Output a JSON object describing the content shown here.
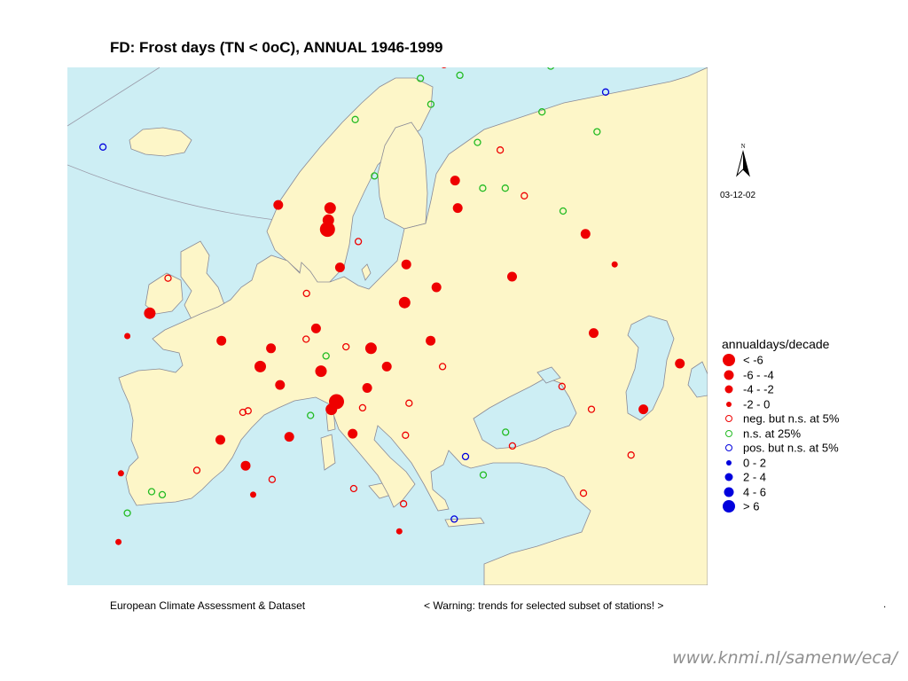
{
  "title": "FD: Frost days (TN < 0oC), ANNUAL 1946-1999",
  "date": "03-12-02",
  "north_label": "N",
  "footer_left": "European Climate Assessment & Dataset",
  "footer_right": "< Warning: trends for selected subset of stations! >",
  "footer_dot": ".",
  "source": "www.knmi.nl/samenw/eca/",
  "colors": {
    "land": "#fdf6c8",
    "sea": "#cdeef4",
    "negative": "#ee0000",
    "not_significant": "#22bb22",
    "positive": "#0000dd"
  },
  "legend": {
    "title": "annualdays/decade",
    "items": [
      {
        "label": "< -6",
        "color": "#ee0000",
        "size": 14,
        "style": "filled"
      },
      {
        "label": "-6 - -4",
        "color": "#ee0000",
        "size": 11,
        "style": "filled"
      },
      {
        "label": "-4 - -2",
        "color": "#ee0000",
        "size": 9,
        "style": "filled"
      },
      {
        "label": "-2 - 0",
        "color": "#ee0000",
        "size": 6,
        "style": "filled"
      },
      {
        "label": "neg. but n.s. at 5%",
        "color": "#ee0000",
        "size": 8,
        "style": "open"
      },
      {
        "label": "n.s. at 25%",
        "color": "#22bb22",
        "size": 8,
        "style": "open"
      },
      {
        "label": "pos. but n.s. at 5%",
        "color": "#0000dd",
        "size": 8,
        "style": "open"
      },
      {
        "label": "0 - 2",
        "color": "#0000dd",
        "size": 6,
        "style": "filled"
      },
      {
        "label": "2 - 4",
        "color": "#0000dd",
        "size": 9,
        "style": "filled"
      },
      {
        "label": "4 - 6",
        "color": "#0000dd",
        "size": 11,
        "style": "filled"
      },
      {
        "label": "> 6",
        "color": "#0000dd",
        "size": 14,
        "style": "filled"
      }
    ]
  },
  "stations": [
    {
      "lon": -21.9,
      "lat": 64.1,
      "cls": "pos_ns"
    },
    {
      "lon": -21.5,
      "lat": 63.4,
      "cls": "pos_ns"
    },
    {
      "lon": -15.0,
      "lat": 64.2,
      "cls": "pos_ns"
    },
    {
      "lon": 25.0,
      "lat": 69.6,
      "cls": "neg_ns"
    },
    {
      "lon": 22.0,
      "lat": 68.7,
      "cls": "ns25"
    },
    {
      "lon": 26.8,
      "lat": 68.9,
      "cls": "ns25"
    },
    {
      "lon": 38.0,
      "lat": 69.5,
      "cls": "ns25"
    },
    {
      "lon": 40.5,
      "lat": 70.0,
      "cls": "ns25"
    },
    {
      "lon": 44.0,
      "lat": 67.8,
      "cls": "pos_ns"
    },
    {
      "lon": 36.0,
      "lat": 66.5,
      "cls": "ns25"
    },
    {
      "lon": 42.0,
      "lat": 65.2,
      "cls": "ns25"
    },
    {
      "lon": 23.0,
      "lat": 67.0,
      "cls": "ns25"
    },
    {
      "lon": 14.0,
      "lat": 66.0,
      "cls": "ns25"
    },
    {
      "lon": 28.0,
      "lat": 64.5,
      "cls": "ns25"
    },
    {
      "lon": 30.5,
      "lat": 64.0,
      "cls": "neg_ns"
    },
    {
      "lon": 16.0,
      "lat": 62.3,
      "cls": "ns25"
    },
    {
      "lon": 25.0,
      "lat": 62.0,
      "cls": "d3"
    },
    {
      "lon": 28.0,
      "lat": 61.5,
      "cls": "ns25"
    },
    {
      "lon": 30.5,
      "lat": 61.5,
      "cls": "ns25"
    },
    {
      "lon": 32.5,
      "lat": 61.0,
      "cls": "neg_ns"
    },
    {
      "lon": 36.5,
      "lat": 60.0,
      "cls": "ns25"
    },
    {
      "lon": 25.0,
      "lat": 60.2,
      "cls": "d3"
    },
    {
      "lon": 38.5,
      "lat": 58.5,
      "cls": "d3"
    },
    {
      "lon": 11.0,
      "lat": 60.2,
      "cls": "d2"
    },
    {
      "lon": 10.8,
      "lat": 59.4,
      "cls": "d2"
    },
    {
      "lon": 10.7,
      "lat": 58.8,
      "cls": "d1"
    },
    {
      "lon": 5.3,
      "lat": 60.4,
      "cls": "d3"
    },
    {
      "lon": 14.0,
      "lat": 58.0,
      "cls": "neg_ns"
    },
    {
      "lon": 41.0,
      "lat": 56.5,
      "cls": "d4"
    },
    {
      "lon": 56.0,
      "lat": 57.0,
      "cls": "ns25"
    },
    {
      "lon": 12.0,
      "lat": 56.3,
      "cls": "d3"
    },
    {
      "lon": 19.0,
      "lat": 56.5,
      "cls": "d3"
    },
    {
      "lon": 30.0,
      "lat": 55.7,
      "cls": "d3"
    },
    {
      "lon": 22.0,
      "lat": 55.0,
      "cls": "d3"
    },
    {
      "lon": 18.6,
      "lat": 54.0,
      "cls": "d2"
    },
    {
      "lon": 8.5,
      "lat": 54.6,
      "cls": "neg_ns"
    },
    {
      "lon": -6.0,
      "lat": 55.6,
      "cls": "neg_ns"
    },
    {
      "lon": 37.5,
      "lat": 52.0,
      "cls": "d3"
    },
    {
      "lon": -7.5,
      "lat": 53.3,
      "cls": "d2"
    },
    {
      "lon": -9.5,
      "lat": 51.8,
      "cls": "d4"
    },
    {
      "lon": 9.5,
      "lat": 52.3,
      "cls": "d3"
    },
    {
      "lon": 8.5,
      "lat": 51.6,
      "cls": "neg_ns"
    },
    {
      "lon": 0.0,
      "lat": 51.5,
      "cls": "d3"
    },
    {
      "lon": 15.0,
      "lat": 51.0,
      "cls": "d2"
    },
    {
      "lon": 21.0,
      "lat": 51.5,
      "cls": "d3"
    },
    {
      "lon": 12.5,
      "lat": 51.1,
      "cls": "neg_ns"
    },
    {
      "lon": 5.0,
      "lat": 51.0,
      "cls": "d3"
    },
    {
      "lon": 4.0,
      "lat": 49.8,
      "cls": "d2"
    },
    {
      "lon": 10.5,
      "lat": 50.5,
      "cls": "ns25"
    },
    {
      "lon": 10.0,
      "lat": 49.5,
      "cls": "d2"
    },
    {
      "lon": 16.5,
      "lat": 49.8,
      "cls": "d3"
    },
    {
      "lon": 22.0,
      "lat": 49.8,
      "cls": "neg_ns"
    },
    {
      "lon": 45.5,
      "lat": 50.0,
      "cls": "d3"
    },
    {
      "lon": 50.5,
      "lat": 50.0,
      "cls": "d3"
    },
    {
      "lon": 6.0,
      "lat": 48.6,
      "cls": "d3"
    },
    {
      "lon": 14.5,
      "lat": 48.4,
      "cls": "d3"
    },
    {
      "lon": 33.5,
      "lat": 48.5,
      "cls": "neg_ns"
    },
    {
      "lon": 41.0,
      "lat": 47.0,
      "cls": "d3"
    },
    {
      "lon": 11.5,
      "lat": 47.5,
      "cls": "d1"
    },
    {
      "lon": 11.0,
      "lat": 47.0,
      "cls": "d2"
    },
    {
      "lon": 14.0,
      "lat": 47.1,
      "cls": "neg_ns"
    },
    {
      "lon": 18.5,
      "lat": 47.4,
      "cls": "neg_ns"
    },
    {
      "lon": 9.0,
      "lat": 46.6,
      "cls": "ns25"
    },
    {
      "lon": 2.5,
      "lat": 46.8,
      "cls": "neg_ns"
    },
    {
      "lon": 3.0,
      "lat": 46.9,
      "cls": "neg_ns"
    },
    {
      "lon": 36.0,
      "lat": 47.0,
      "cls": "neg_ns"
    },
    {
      "lon": 7.0,
      "lat": 45.2,
      "cls": "d3"
    },
    {
      "lon": 13.0,
      "lat": 45.4,
      "cls": "d3"
    },
    {
      "lon": 18.0,
      "lat": 45.3,
      "cls": "neg_ns"
    },
    {
      "lon": 27.5,
      "lat": 45.5,
      "cls": "ns25"
    },
    {
      "lon": 28.0,
      "lat": 44.6,
      "cls": "neg_ns"
    },
    {
      "lon": 0.5,
      "lat": 45.0,
      "cls": "d3"
    },
    {
      "lon": 23.5,
      "lat": 43.9,
      "cls": "pos_ns"
    },
    {
      "lon": 39.0,
      "lat": 44.0,
      "cls": "neg_ns"
    },
    {
      "lon": -1.5,
      "lat": 43.0,
      "cls": "neg_ns"
    },
    {
      "lon": 3.0,
      "lat": 43.3,
      "cls": "d3"
    },
    {
      "lon": 25.0,
      "lat": 42.7,
      "cls": "ns25"
    },
    {
      "lon": 5.5,
      "lat": 42.4,
      "cls": "neg_ns"
    },
    {
      "lon": -8.5,
      "lat": 42.8,
      "cls": "d4"
    },
    {
      "lon": -5.5,
      "lat": 41.6,
      "cls": "ns25"
    },
    {
      "lon": -4.5,
      "lat": 41.4,
      "cls": "ns25"
    },
    {
      "lon": 3.8,
      "lat": 41.4,
      "cls": "d4"
    },
    {
      "lon": 13.0,
      "lat": 41.8,
      "cls": "neg_ns"
    },
    {
      "lon": 17.5,
      "lat": 40.8,
      "cls": "neg_ns"
    },
    {
      "lon": 34.0,
      "lat": 41.5,
      "cls": "neg_ns"
    },
    {
      "lon": -7.5,
      "lat": 40.2,
      "cls": "ns25"
    },
    {
      "lon": 22.0,
      "lat": 39.8,
      "cls": "pos_ns"
    },
    {
      "lon": 17.0,
      "lat": 39.0,
      "cls": "d4"
    },
    {
      "lon": -8.0,
      "lat": 38.3,
      "cls": "d4"
    }
  ]
}
